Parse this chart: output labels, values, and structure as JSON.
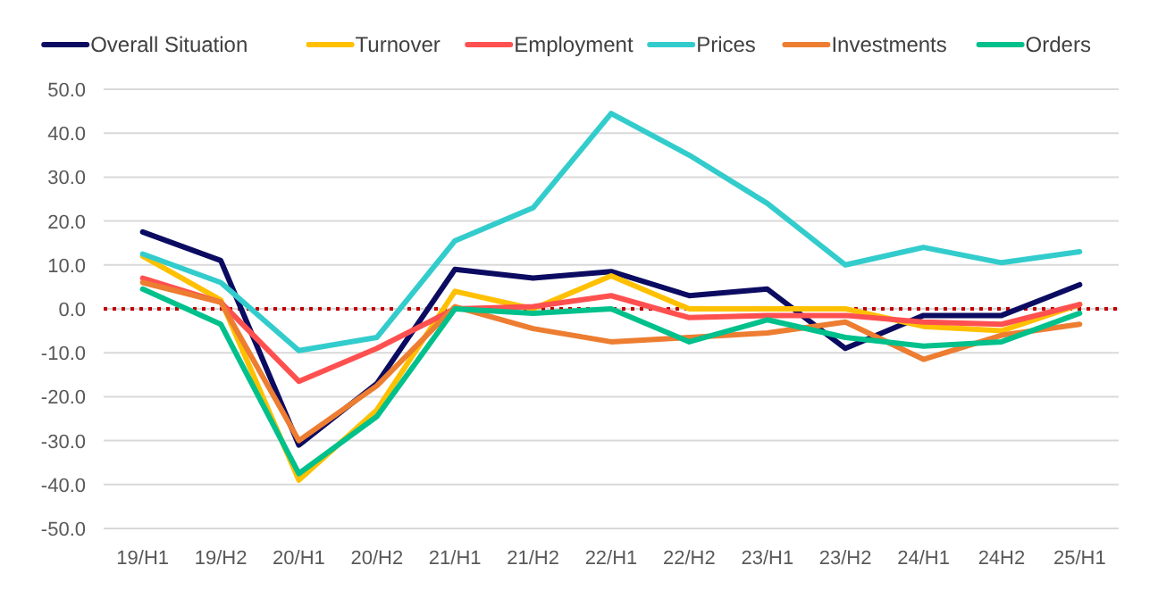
{
  "chart_data": {
    "type": "line",
    "categories": [
      "19/H1",
      "19/H2",
      "20/H1",
      "20/H2",
      "21/H1",
      "21/H2",
      "22/H1",
      "22/H2",
      "23/H1",
      "23/H2",
      "24/H1",
      "24H2",
      "25/H1"
    ],
    "series": [
      {
        "name": "Overall Situation",
        "color": "#0b0b61",
        "values": [
          17.5,
          11,
          -31,
          -17,
          9,
          7,
          8.5,
          3,
          4.5,
          -9,
          -1.5,
          -1.5,
          5.5
        ]
      },
      {
        "name": "Turnover",
        "color": "#ffc000",
        "values": [
          12,
          2,
          -39,
          -23,
          4,
          0,
          7.5,
          0,
          0,
          0,
          -4,
          -5,
          1
        ]
      },
      {
        "name": "Employment",
        "color": "#ff5050",
        "values": [
          7,
          1.5,
          -16.5,
          -9,
          0,
          0.5,
          3,
          -2,
          -1.5,
          -1.5,
          -3,
          -3.5,
          1
        ]
      },
      {
        "name": "Prices",
        "color": "#33cccc",
        "values": [
          12.5,
          6,
          -9.5,
          -6.5,
          15.5,
          23,
          44.5,
          35,
          24,
          10,
          14,
          10.5,
          13
        ]
      },
      {
        "name": "Investments",
        "color": "#ed7d31",
        "values": [
          6,
          1.5,
          -30,
          -17.5,
          0.5,
          -4.5,
          -7.5,
          -6.5,
          -5.5,
          -3,
          -11.5,
          -6,
          -3.5
        ]
      },
      {
        "name": "Orders",
        "color": "#00c08b",
        "values": [
          4.5,
          -3.5,
          -37.5,
          -24.5,
          0,
          -1,
          0,
          -7.5,
          -2.5,
          -6.5,
          -8.5,
          -7.5,
          -1
        ]
      }
    ],
    "ylim": [
      -50,
      50
    ],
    "yticks": [
      {
        "value": -50,
        "label": "-50.0"
      },
      {
        "value": -40,
        "label": "-40.0"
      },
      {
        "value": -30,
        "label": "-30.0"
      },
      {
        "value": -20,
        "label": "-20.0"
      },
      {
        "value": -10,
        "label": "-10.0"
      },
      {
        "value": 0,
        "label": "0.0"
      },
      {
        "value": 10,
        "label": "10.0"
      },
      {
        "value": 20,
        "label": "20.0"
      },
      {
        "value": 30,
        "label": "30.0"
      },
      {
        "value": 40,
        "label": "40.0"
      },
      {
        "value": 50,
        "label": "50.0"
      }
    ],
    "grid": "y",
    "legend": "top",
    "line_style": "solid",
    "marker": "none",
    "ref_lines": [
      {
        "axis": "y",
        "value": 0,
        "color": "#c00000",
        "line_style": "dotted"
      }
    ]
  }
}
